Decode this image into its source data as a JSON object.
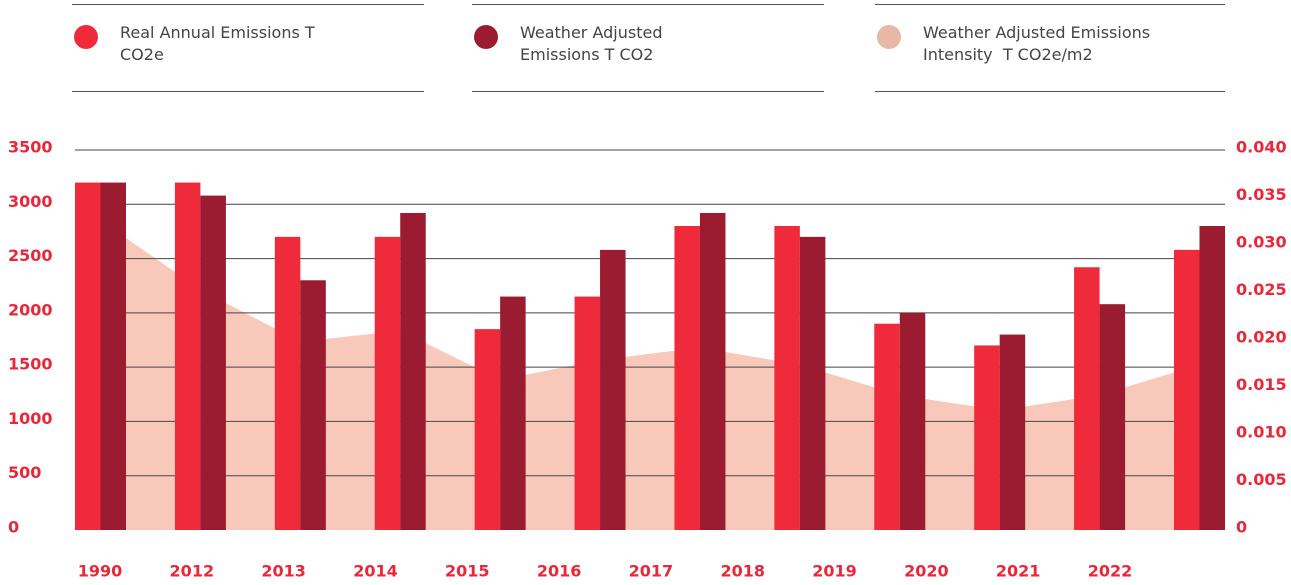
{
  "chart_data": {
    "type": "bar",
    "categories": [
      "1990",
      "2012",
      "2013",
      "2014",
      "2015",
      "2016",
      "2017",
      "2018",
      "2019",
      "2020",
      "2021",
      "2022"
    ],
    "series": [
      {
        "name": "Real Annual Emissions T CO2e",
        "color": "#ee2a3b",
        "type": "bar",
        "values": [
          3200,
          3200,
          2700,
          2700,
          1850,
          2150,
          2800,
          2800,
          1900,
          1700,
          2420,
          2580
        ]
      },
      {
        "name": "Weather Adjusted Emissions T CO2",
        "color": "#9b1b30",
        "type": "bar",
        "values": [
          3200,
          3080,
          2300,
          2920,
          2150,
          2580,
          2920,
          2700,
          2000,
          1800,
          2080,
          2800
        ]
      },
      {
        "name": "Weather Adjusted Emissions Intensity  T CO2e/m2",
        "color": "#f8c8ba",
        "type": "area",
        "axis": "y2",
        "values": [
          0.0326,
          0.0253,
          0.0198,
          0.021,
          0.0158,
          0.0179,
          0.0192,
          0.0174,
          0.0142,
          0.0126,
          0.0142,
          0.0174
        ]
      }
    ],
    "ylim": [
      0,
      3500
    ],
    "yticks": [
      0,
      500,
      1000,
      1500,
      2000,
      2500,
      3000,
      3500
    ],
    "y2lim": [
      0,
      0.04
    ],
    "y2ticks": [
      0,
      {
        "value": 0.005,
        "label": "0.005"
      },
      {
        "value": 0.01,
        "label": "0.010"
      },
      {
        "value": 0.015,
        "label": "0.015"
      },
      {
        "value": 0.02,
        "label": "0.020"
      },
      {
        "value": 0.025,
        "label": "0.025"
      },
      {
        "value": 0.03,
        "label": "0.030"
      },
      {
        "value": 0.035,
        "label": "0.035"
      },
      {
        "value": 0.04,
        "label": "0.040"
      }
    ],
    "grid": true,
    "legend": "top"
  }
}
